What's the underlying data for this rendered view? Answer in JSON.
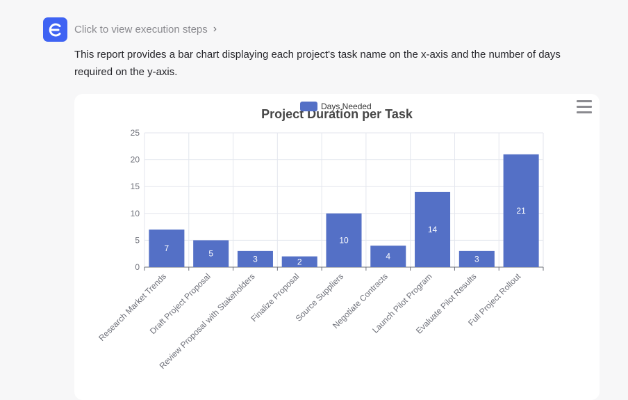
{
  "header": {
    "logo_icon": "brand-e-icon",
    "execution_link": "Click to view execution steps",
    "chevron_icon": "chevron-right-icon"
  },
  "message": {
    "description": "This report provides a bar chart displaying each project's task name on the x-axis and the number of days required on the y-axis."
  },
  "toolbar": {
    "menu_icon": "hamburger-menu-icon"
  },
  "colors": {
    "accent": "#3f63f3",
    "bar": "#5470c6"
  },
  "chart_data": {
    "type": "bar",
    "title": "Project Duration per Task",
    "legend": {
      "label": "Days Needed",
      "placement": "top-center"
    },
    "categories": [
      "Research Market Trends",
      "Draft Project Proposal",
      "Review Proposal with Stakeholders",
      "Finalize Proposal",
      "Source Suppliers",
      "Negotiate Contracts",
      "Launch Pilot Program",
      "Evaluate Pilot Results",
      "Full Project Rollout"
    ],
    "series": [
      {
        "name": "Days Needed",
        "values": [
          7,
          5,
          3,
          2,
          10,
          4,
          14,
          3,
          21
        ]
      }
    ],
    "ylim": [
      0,
      25
    ],
    "yticks": [
      0,
      5,
      10,
      15,
      20,
      25
    ],
    "grid": true,
    "data_labels": true
  }
}
